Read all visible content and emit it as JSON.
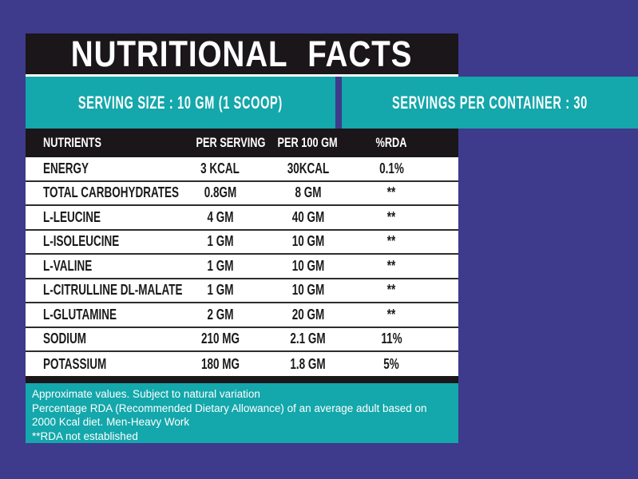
{
  "header": {
    "title": "NUTRITIONAL FACTS"
  },
  "serving": {
    "size_label": "SERVING SIZE : 10 GM (1 SCOOP)",
    "per_container_label": "SERVINGS PER CONTAINER : 30"
  },
  "table": {
    "columns": [
      "NUTRIENTS",
      "PER SERVING",
      "PER 100 GM",
      "%RDA"
    ],
    "rows": [
      {
        "name": "ENERGY",
        "per_serving": "3 KCAL",
        "per_100gm": "30KCAL",
        "rda": "0.1%"
      },
      {
        "name": "TOTAL CARBOHYDRATES",
        "per_serving": "0.8GM",
        "per_100gm": "8 GM",
        "rda": "**"
      },
      {
        "name": "L-LEUCINE",
        "per_serving": "4 GM",
        "per_100gm": "40 GM",
        "rda": "**"
      },
      {
        "name": "L-ISOLEUCINE",
        "per_serving": "1 GM",
        "per_100gm": "10 GM",
        "rda": "**"
      },
      {
        "name": "L-VALINE",
        "per_serving": "1 GM",
        "per_100gm": "10 GM",
        "rda": "**"
      },
      {
        "name": "L-CITRULLINE DL-MALATE",
        "per_serving": "1 GM",
        "per_100gm": "10 GM",
        "rda": "**"
      },
      {
        "name": "L-GLUTAMINE",
        "per_serving": "2 GM",
        "per_100gm": "20 GM",
        "rda": "**"
      },
      {
        "name": "SODIUM",
        "per_serving": "210 MG",
        "per_100gm": "2.1 GM",
        "rda": "11%"
      },
      {
        "name": "POTASSIUM",
        "per_serving": "180 MG",
        "per_100gm": "1.8 GM",
        "rda": "5%"
      }
    ]
  },
  "footer": {
    "lines": [
      "Approximate values. Subject to natural variation",
      "Percentage RDA (Recommended Dietary Allowance) of an average adult based on",
      "2000 Kcal diet. Men-Heavy Work",
      "**RDA not established"
    ]
  },
  "colors": {
    "border_purple": "#3e3a8c",
    "accent_teal": "#14a7ab",
    "bar_black": "#1a161a",
    "text_white": "#ffffff"
  }
}
